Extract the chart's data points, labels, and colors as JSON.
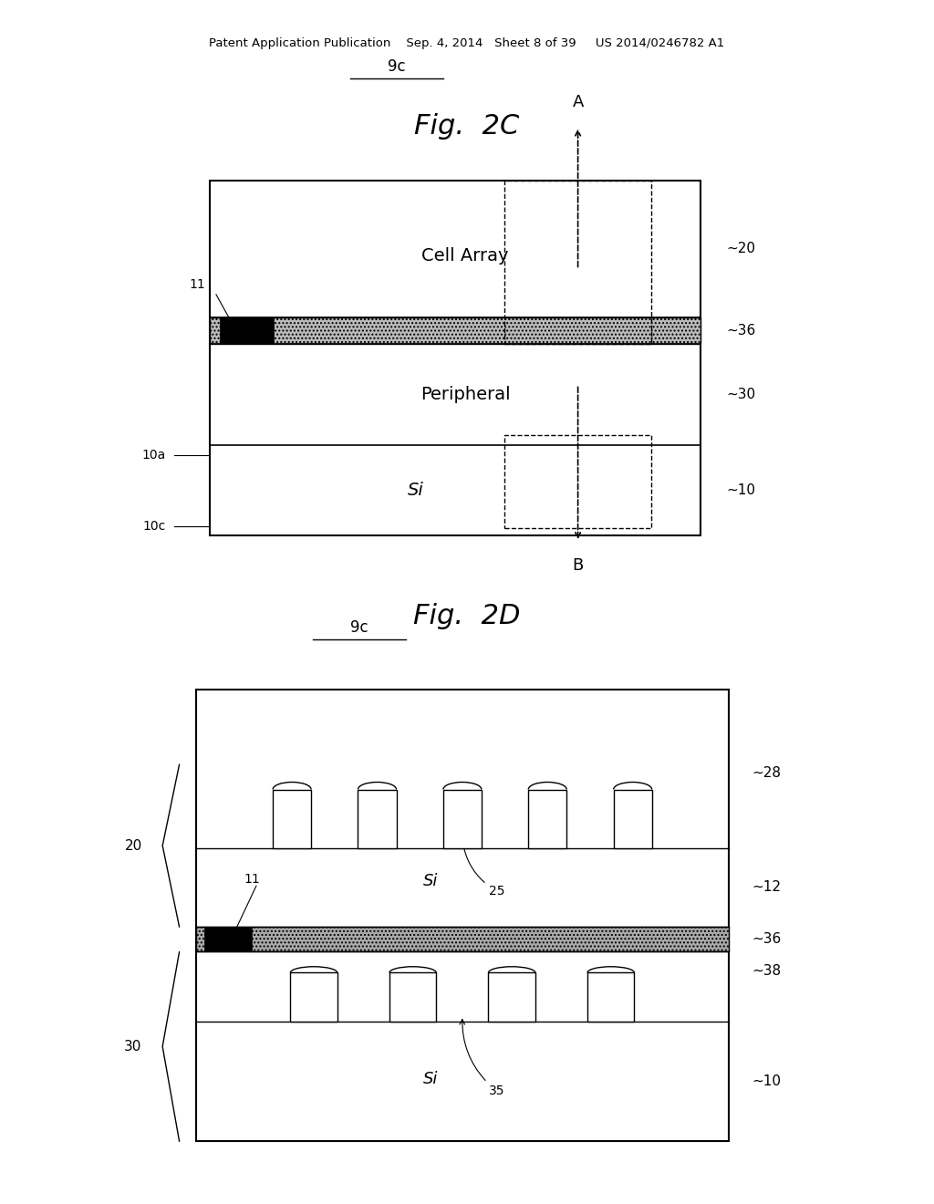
{
  "background_color": "#ffffff",
  "header_text": "Patent Application Publication    Sep. 4, 2014   Sheet 8 of 39     US 2014/0246782 A1",
  "fig2c_title": "Fig.  2C",
  "fig2d_title": "Fig.  2D",
  "fig2c": {
    "cell_array_label": "Cell Array",
    "peripheral_label": "Peripheral",
    "si_label": "Si",
    "label_11": "11",
    "label_20": "20",
    "label_30": "30",
    "label_10": "10",
    "label_36": "36",
    "label_10a": "10a",
    "label_10c": "10c",
    "label_A": "A",
    "label_B": "B",
    "label_9c": "9c"
  },
  "fig2d": {
    "si_top_label": "Si",
    "si_bot_label": "Si",
    "label_25": "25",
    "label_35": "35",
    "label_11": "11",
    "label_20": "20",
    "label_28": "28",
    "label_12": "12",
    "label_30": "30",
    "label_36": "36",
    "label_38": "38",
    "label_10": "10",
    "label_9c": "9c"
  }
}
